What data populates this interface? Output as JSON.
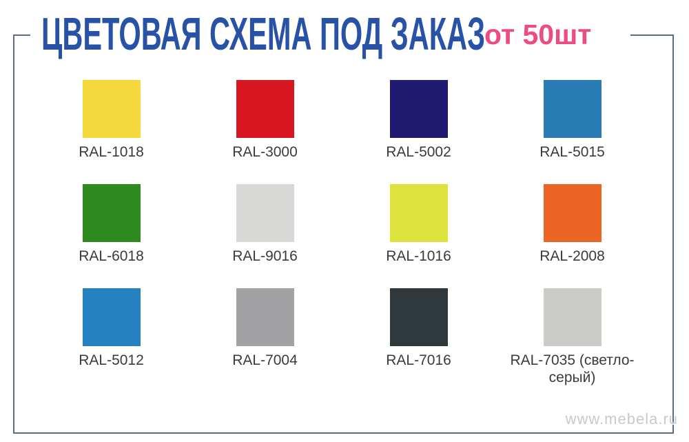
{
  "header": {
    "title": "ЦВЕТОВАЯ СХЕМА ПОД ЗАКАЗ",
    "badge": "от 50шт"
  },
  "palette": {
    "swatches": [
      {
        "label": "RAL-1018",
        "hex": "#F5D83B"
      },
      {
        "label": "RAL-3000",
        "hex": "#D8161F"
      },
      {
        "label": "RAL-5002",
        "hex": "#201A70"
      },
      {
        "label": "RAL-5015",
        "hex": "#2A7CB4"
      },
      {
        "label": "RAL-6018",
        "hex": "#2E8A1F"
      },
      {
        "label": "RAL-9016",
        "hex": "#D8D8D6"
      },
      {
        "label": "RAL-1016",
        "hex": "#DEE23C"
      },
      {
        "label": "RAL-2008",
        "hex": "#EC6524"
      },
      {
        "label": "RAL-5012",
        "hex": "#2480BE"
      },
      {
        "label": "RAL-7004",
        "hex": "#A2A2A4"
      },
      {
        "label": "RAL-7016",
        "hex": "#2F393B"
      },
      {
        "label": "RAL-7035 (светло-серый)",
        "hex": "#CBCBC7"
      }
    ]
  },
  "footer": {
    "watermark": "www.mebela.ru"
  },
  "theme": {
    "background": "#FFFFFF",
    "title_color": "#2752A5",
    "badge_color": "#EE4B80",
    "frame_color": "#5C6B88",
    "label_color": "#3A3A3A",
    "watermark_color": "#C9C9C9"
  }
}
